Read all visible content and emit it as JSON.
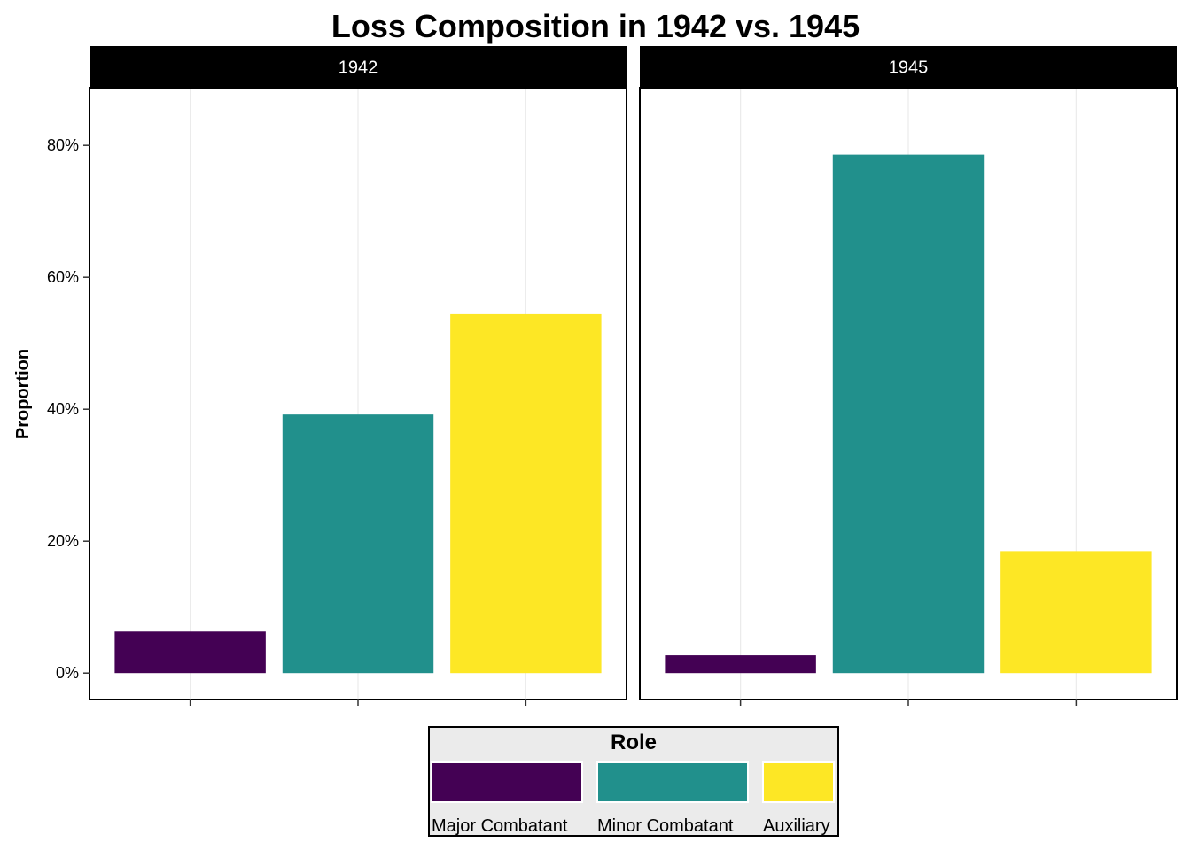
{
  "chart_data": {
    "type": "bar",
    "title": "Loss Composition in 1942 vs. 1945",
    "ylabel": "Proportion",
    "xlabel": "",
    "ylim": [
      -0.04,
      0.8875
    ],
    "yticks": [
      0,
      0.2,
      0.4,
      0.6,
      0.8
    ],
    "ytick_labels": [
      "0%",
      "20%",
      "40%",
      "60%",
      "80%"
    ],
    "grid": true,
    "categories": [
      "Major Combatant",
      "Minor Combatant",
      "Auxiliary"
    ],
    "colors": [
      "#440154",
      "#21908C",
      "#FDE725"
    ],
    "facets": [
      {
        "label": "1942",
        "values": [
          0.063,
          0.392,
          0.544
        ]
      },
      {
        "label": "1945",
        "values": [
          0.027,
          0.786,
          0.185
        ]
      }
    ],
    "legend": {
      "title": "Role",
      "position": "bottom",
      "entries": [
        "Major Combatant",
        "Minor Combatant",
        "Auxiliary"
      ]
    }
  }
}
